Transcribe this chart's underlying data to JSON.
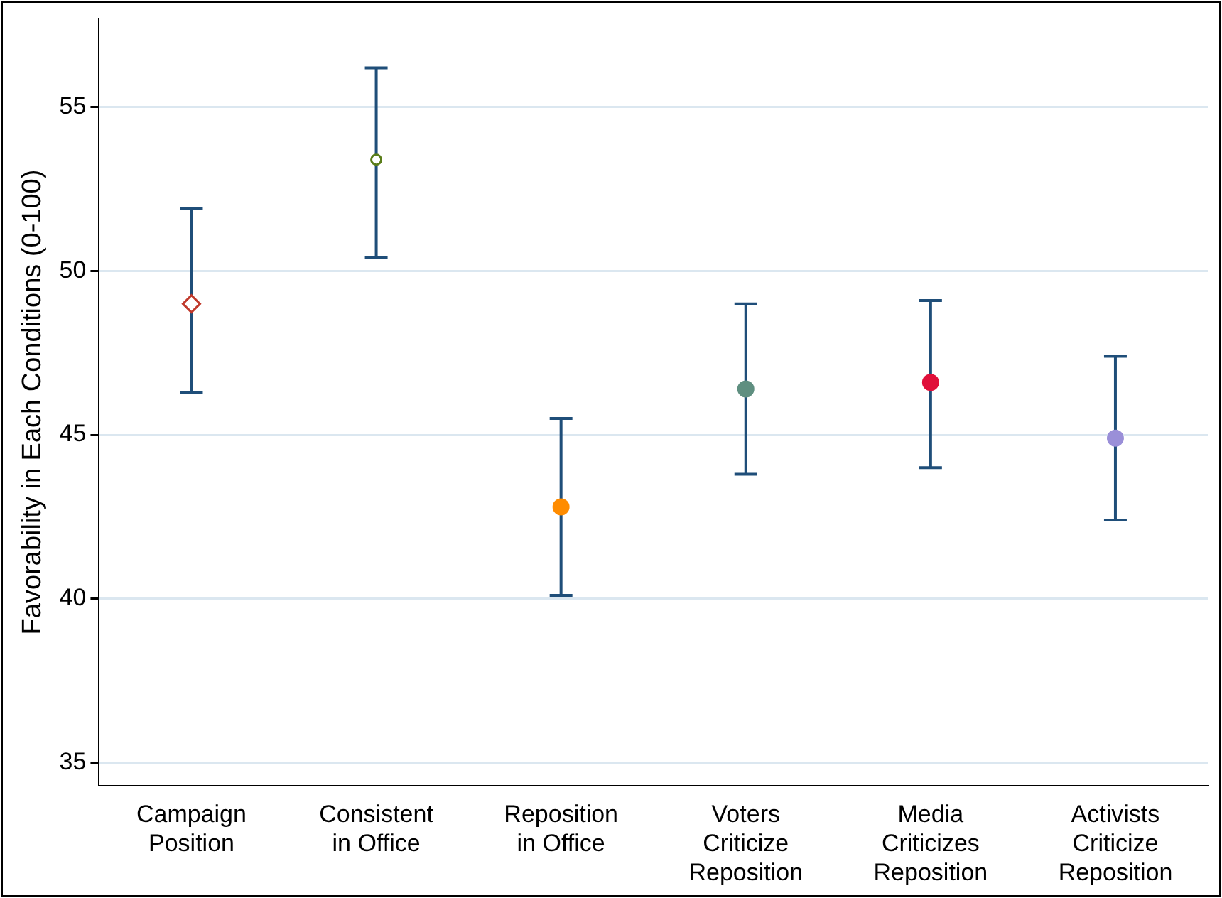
{
  "chart_data": {
    "type": "scatter",
    "ylabel": "Favorability in Each Conditions (0-100)",
    "categories": [
      "Campaign Position",
      "Consistent in Office",
      "Reposition in Office",
      "Voters Criticize Reposition",
      "Media Criticizes Reposition",
      "Activists Criticize Reposition"
    ],
    "series": [
      {
        "color": "#c0392b",
        "marker": "diamond",
        "values": [
          49.0,
          null,
          null,
          null,
          null,
          null
        ],
        "errors": [
          [
            46.3,
            51.9
          ],
          null,
          null,
          null,
          null,
          null
        ]
      },
      {
        "color": "#5a7d1a",
        "marker": "circle",
        "values": [
          null,
          53.4,
          null,
          null,
          null,
          null
        ],
        "errors": [
          null,
          [
            50.4,
            56.2
          ],
          null,
          null,
          null,
          null
        ]
      },
      {
        "colors": [
          "#000000",
          "#000000",
          "#ff8c00",
          "#5f8f80",
          "#e0103a",
          "#9a8fd8"
        ],
        "marker": "circle",
        "values": [
          null,
          null,
          42.8,
          46.4,
          46.6,
          44.9
        ],
        "errors": [
          null,
          null,
          [
            40.1,
            45.5
          ],
          [
            43.8,
            49.0
          ],
          [
            44.0,
            49.1
          ],
          [
            42.4,
            47.4
          ]
        ]
      }
    ],
    "ylim": [
      34.3,
      57.7
    ],
    "yticks": [
      35,
      40,
      45,
      50,
      55
    ],
    "grid": "y",
    "legend": false
  }
}
